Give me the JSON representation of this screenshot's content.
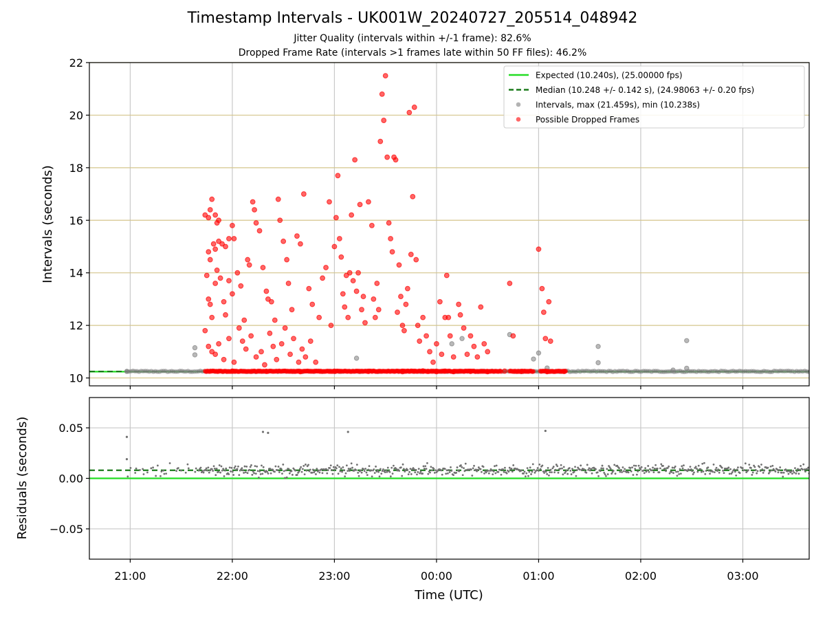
{
  "header": {
    "title": "Timestamp Intervals - UK001W_20240727_205514_048942",
    "subtitle1": "Jitter Quality (intervals within +/-1 frame): 82.6%",
    "subtitle2": "Dropped Frame Rate (intervals >1 frames late within 50 FF files): 46.2%"
  },
  "chart_data": [
    {
      "id": "intervals",
      "type": "scatter",
      "xlabel": "",
      "ylabel": "Intervals (seconds)",
      "xlim": [
        "20:36",
        "03:39"
      ],
      "ylim": [
        9.7,
        22
      ],
      "x_ticks": [
        "21:00",
        "22:00",
        "23:00",
        "00:00",
        "01:00",
        "02:00",
        "03:00"
      ],
      "y_ticks": [
        10,
        12,
        14,
        16,
        18,
        20,
        22
      ],
      "grid": true,
      "legend_position": "top-right",
      "reference_lines": [
        {
          "name": "Expected (10.240s), (25.00000 fps)",
          "y": 10.24,
          "color": "#22dd22",
          "style": "solid"
        },
        {
          "name": "Median (10.248 +/- 0.142 s), (24.98063 +/- 0.20 fps)",
          "y": 10.248,
          "color": "#1a7a1a",
          "style": "dashed"
        }
      ],
      "series": [
        {
          "name": "Intervals, max (21.459s), min (10.238s)",
          "color": "#808080",
          "points": [
            [
              "20:58",
              10.25
            ],
            [
              "21:38",
              11.15
            ],
            [
              "21:38",
              10.88
            ],
            [
              "23:13",
              10.75
            ],
            [
              "00:09",
              11.3
            ],
            [
              "00:15",
              11.5
            ],
            [
              "00:43",
              11.65
            ],
            [
              "00:57",
              10.72
            ],
            [
              "01:00",
              10.95
            ],
            [
              "01:05",
              10.38
            ],
            [
              "01:35",
              11.2
            ],
            [
              "01:35",
              10.58
            ],
            [
              "02:19",
              10.3
            ],
            [
              "02:27",
              11.42
            ],
            [
              "02:27",
              10.37
            ]
          ]
        },
        {
          "name": "Possible Dropped Frames",
          "color": "#ff0000",
          "points": [
            [
              "21:44",
              16.2
            ],
            [
              "21:46",
              16.1
            ],
            [
              "21:47",
              16.4
            ],
            [
              "21:48",
              16.8
            ],
            [
              "21:50",
              16.2
            ],
            [
              "21:51",
              15.9
            ],
            [
              "21:52",
              16.0
            ],
            [
              "21:46",
              14.8
            ],
            [
              "21:47",
              14.5
            ],
            [
              "21:49",
              15.1
            ],
            [
              "21:50",
              14.9
            ],
            [
              "21:52",
              15.2
            ],
            [
              "21:54",
              15.1
            ],
            [
              "21:56",
              15.0
            ],
            [
              "21:58",
              15.3
            ],
            [
              "22:00",
              15.8
            ],
            [
              "22:01",
              15.3
            ],
            [
              "21:45",
              13.9
            ],
            [
              "21:46",
              13.0
            ],
            [
              "21:47",
              12.8
            ],
            [
              "21:48",
              12.3
            ],
            [
              "21:50",
              13.6
            ],
            [
              "21:51",
              14.1
            ],
            [
              "21:53",
              13.8
            ],
            [
              "21:55",
              12.9
            ],
            [
              "21:56",
              12.4
            ],
            [
              "21:58",
              13.7
            ],
            [
              "22:00",
              13.2
            ],
            [
              "22:03",
              14.0
            ],
            [
              "22:05",
              13.5
            ],
            [
              "22:07",
              12.2
            ],
            [
              "22:09",
              14.5
            ],
            [
              "22:10",
              14.3
            ],
            [
              "22:12",
              16.7
            ],
            [
              "22:13",
              16.4
            ],
            [
              "22:14",
              15.9
            ],
            [
              "22:16",
              15.6
            ],
            [
              "22:18",
              14.2
            ],
            [
              "22:20",
              13.3
            ],
            [
              "22:21",
              13.0
            ],
            [
              "22:23",
              12.9
            ],
            [
              "22:25",
              12.2
            ],
            [
              "22:27",
              16.8
            ],
            [
              "22:28",
              16.0
            ],
            [
              "22:30",
              15.2
            ],
            [
              "22:32",
              14.5
            ],
            [
              "22:33",
              13.6
            ],
            [
              "22:35",
              12.6
            ],
            [
              "22:38",
              15.4
            ],
            [
              "22:40",
              15.1
            ],
            [
              "22:42",
              17.0
            ],
            [
              "22:45",
              13.4
            ],
            [
              "22:47",
              12.8
            ],
            [
              "21:44",
              11.8
            ],
            [
              "21:46",
              11.2
            ],
            [
              "21:48",
              11.0
            ],
            [
              "21:50",
              10.9
            ],
            [
              "21:52",
              11.3
            ],
            [
              "21:55",
              10.7
            ],
            [
              "21:58",
              11.5
            ],
            [
              "22:01",
              10.6
            ],
            [
              "22:04",
              11.9
            ],
            [
              "22:06",
              11.4
            ],
            [
              "22:08",
              11.1
            ],
            [
              "22:11",
              11.6
            ],
            [
              "22:14",
              10.8
            ],
            [
              "22:17",
              11.0
            ],
            [
              "22:19",
              10.5
            ],
            [
              "22:22",
              11.7
            ],
            [
              "22:24",
              11.2
            ],
            [
              "22:26",
              10.7
            ],
            [
              "22:29",
              11.3
            ],
            [
              "22:31",
              11.9
            ],
            [
              "22:34",
              10.9
            ],
            [
              "22:36",
              11.5
            ],
            [
              "22:39",
              10.6
            ],
            [
              "22:41",
              11.1
            ],
            [
              "22:43",
              10.8
            ],
            [
              "22:46",
              11.4
            ],
            [
              "22:49",
              10.6
            ],
            [
              "22:51",
              12.3
            ],
            [
              "22:53",
              13.8
            ],
            [
              "22:55",
              14.2
            ],
            [
              "22:57",
              16.7
            ],
            [
              "22:58",
              12.0
            ],
            [
              "23:00",
              15.0
            ],
            [
              "23:01",
              16.1
            ],
            [
              "23:02",
              17.7
            ],
            [
              "23:03",
              15.3
            ],
            [
              "23:04",
              14.6
            ],
            [
              "23:05",
              13.2
            ],
            [
              "23:06",
              12.7
            ],
            [
              "23:07",
              13.9
            ],
            [
              "23:08",
              12.3
            ],
            [
              "23:09",
              14.0
            ],
            [
              "23:10",
              16.2
            ],
            [
              "23:11",
              13.7
            ],
            [
              "23:12",
              18.3
            ],
            [
              "23:13",
              13.3
            ],
            [
              "23:14",
              14.0
            ],
            [
              "23:15",
              16.6
            ],
            [
              "23:16",
              12.6
            ],
            [
              "23:17",
              13.1
            ],
            [
              "23:18",
              12.1
            ],
            [
              "23:20",
              16.7
            ],
            [
              "23:22",
              15.8
            ],
            [
              "23:23",
              13.0
            ],
            [
              "23:24",
              12.3
            ],
            [
              "23:25",
              13.6
            ],
            [
              "23:26",
              12.6
            ],
            [
              "23:27",
              19.0
            ],
            [
              "23:28",
              20.8
            ],
            [
              "23:29",
              19.8
            ],
            [
              "23:30",
              21.5
            ],
            [
              "23:31",
              18.4
            ],
            [
              "23:32",
              15.9
            ],
            [
              "23:33",
              15.3
            ],
            [
              "23:34",
              14.8
            ],
            [
              "23:35",
              18.4
            ],
            [
              "23:36",
              18.3
            ],
            [
              "23:37",
              12.5
            ],
            [
              "23:38",
              14.3
            ],
            [
              "23:39",
              13.1
            ],
            [
              "23:40",
              12.0
            ],
            [
              "23:41",
              11.8
            ],
            [
              "23:42",
              12.8
            ],
            [
              "23:43",
              13.4
            ],
            [
              "23:44",
              20.1
            ],
            [
              "23:45",
              14.7
            ],
            [
              "23:46",
              16.9
            ],
            [
              "23:47",
              20.3
            ],
            [
              "23:48",
              14.5
            ],
            [
              "23:49",
              12.0
            ],
            [
              "23:50",
              11.4
            ],
            [
              "23:52",
              12.3
            ],
            [
              "23:54",
              11.6
            ],
            [
              "23:56",
              11.0
            ],
            [
              "23:58",
              10.6
            ],
            [
              "00:00",
              11.3
            ],
            [
              "00:02",
              12.9
            ],
            [
              "00:03",
              10.9
            ],
            [
              "00:05",
              12.3
            ],
            [
              "00:06",
              13.9
            ],
            [
              "00:07",
              12.3
            ],
            [
              "00:08",
              11.6
            ],
            [
              "00:10",
              10.8
            ],
            [
              "00:13",
              12.8
            ],
            [
              "00:14",
              12.4
            ],
            [
              "00:16",
              11.9
            ],
            [
              "00:18",
              10.9
            ],
            [
              "00:20",
              11.6
            ],
            [
              "00:22",
              11.2
            ],
            [
              "00:24",
              10.8
            ],
            [
              "00:26",
              12.7
            ],
            [
              "00:28",
              11.3
            ],
            [
              "00:30",
              11.0
            ],
            [
              "00:43",
              13.6
            ],
            [
              "00:45",
              11.6
            ],
            [
              "01:00",
              14.9
            ],
            [
              "01:02",
              13.4
            ],
            [
              "01:03",
              12.5
            ],
            [
              "01:04",
              11.5
            ],
            [
              "01:06",
              12.9
            ],
            [
              "01:07",
              11.4
            ],
            [
              "23:52",
              10.27
            ],
            [
              "23:55",
              10.25
            ],
            [
              "00:00",
              10.24
            ],
            [
              "00:05",
              10.26
            ],
            [
              "00:10",
              10.24
            ],
            [
              "00:20",
              10.25
            ],
            [
              "00:30",
              10.24
            ],
            [
              "00:40",
              10.26
            ],
            [
              "00:50",
              10.25
            ],
            [
              "01:05",
              10.24
            ],
            [
              "01:15",
              10.25
            ],
            [
              "22:00",
              10.26
            ],
            [
              "22:20",
              10.25
            ],
            [
              "22:40",
              10.24
            ],
            [
              "23:00",
              10.26
            ],
            [
              "23:20",
              10.25
            ],
            [
              "23:40",
              10.24
            ]
          ]
        }
      ],
      "dense_band": {
        "name": "Possible Dropped Frames",
        "y": 10.255,
        "segments": [
          [
            "21:44",
            "23:48"
          ],
          [
            "23:43",
            "00:38"
          ],
          [
            "00:43",
            "00:57"
          ],
          [
            "01:01",
            "01:16"
          ]
        ]
      }
    },
    {
      "id": "residuals",
      "type": "scatter",
      "xlabel": "Time (UTC)",
      "ylabel": "Residuals (seconds)",
      "xlim": [
        "20:36",
        "03:39"
      ],
      "ylim": [
        -0.08,
        0.08
      ],
      "x_ticks": [
        "21:00",
        "22:00",
        "23:00",
        "00:00",
        "01:00",
        "02:00",
        "03:00"
      ],
      "y_ticks": [
        0.05,
        0.0,
        -0.05
      ],
      "y_tick_labels": [
        "0.05",
        "0.00",
        "−0.05"
      ],
      "grid": true,
      "reference_lines": [
        {
          "y": 0.0,
          "color": "#22dd22",
          "style": "solid"
        },
        {
          "y": 0.008,
          "color": "#1a7a1a",
          "style": "dashed"
        }
      ],
      "series": [
        {
          "color": "#808080",
          "outliers": [
            [
              "20:58",
              0.041
            ],
            [
              "20:58",
              0.019
            ],
            [
              "22:18",
              0.046
            ],
            [
              "22:21",
              0.045
            ],
            [
              "23:08",
              0.046
            ],
            [
              "01:04",
              0.047
            ]
          ],
          "band": {
            "start": "20:58",
            "end": "03:39",
            "center": 0.008,
            "spread": 0.004
          }
        }
      ]
    }
  ]
}
